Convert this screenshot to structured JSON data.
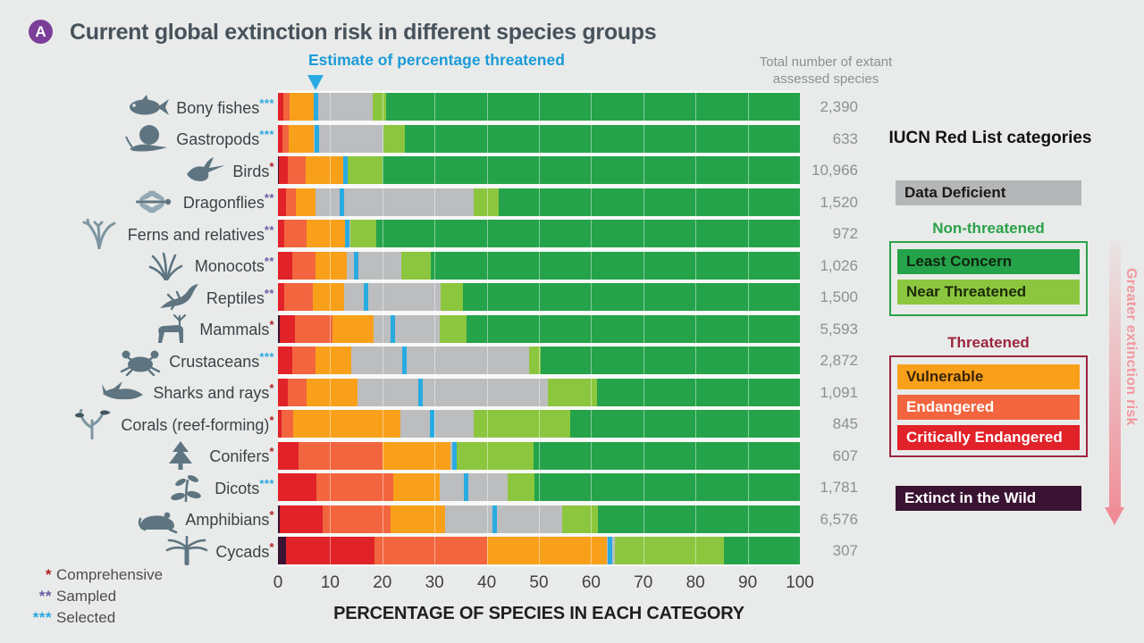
{
  "badge": "A",
  "title": "Current global extinction risk in different species groups",
  "annotation": {
    "text": "Estimate of percentage threatened",
    "color": "#1b9bd8"
  },
  "right_header": {
    "line1": "Total number of extant",
    "line2": "assessed species"
  },
  "legend": {
    "title": "IUCN Red List categories",
    "data_deficient": {
      "label": "Data Deficient",
      "color": "#b5b6b8"
    },
    "non_threatened": {
      "heading": "Non-threatened",
      "heading_color": "#2aa148",
      "items": [
        {
          "label": "Least Concern",
          "color": "#25a34a"
        },
        {
          "label": "Near Threatened",
          "color": "#8cc63f"
        }
      ]
    },
    "threatened": {
      "heading": "Threatened",
      "heading_color": "#9c2440",
      "items": [
        {
          "label": "Vulnerable",
          "color": "#f9a01b"
        },
        {
          "label": "Endangered",
          "color": "#f2653e"
        },
        {
          "label": "Critically Endangered",
          "color": "#e12228"
        }
      ]
    },
    "extinct_in_wild": {
      "label": "Extinct in the Wild",
      "color": "#3a1333"
    },
    "risk_arrow_label": "Greater extinction risk"
  },
  "axis": {
    "ticks": [
      0,
      10,
      20,
      30,
      40,
      50,
      60,
      70,
      80,
      90,
      100
    ],
    "label": "PERCENTAGE OF SPECIES IN EACH CATEGORY"
  },
  "footnotes": [
    {
      "stars": "*",
      "label": "Comprehensive",
      "color": "#b32025"
    },
    {
      "stars": "**",
      "label": "Sampled",
      "color": "#6a5fa7"
    },
    {
      "stars": "***",
      "label": "Selected",
      "color": "#2ba7e0"
    }
  ],
  "chart_data": {
    "type": "bar",
    "stacked": true,
    "orientation": "horizontal",
    "title": "Current global extinction risk in different species groups",
    "xlabel": "PERCENTAGE OF SPECIES IN EACH CATEGORY",
    "xlim": [
      0,
      100
    ],
    "grid": "white vertical lines every 10%",
    "legend_position": "right",
    "segment_order": [
      "extinct_in_wild",
      "critically_endangered",
      "endangered",
      "vulnerable",
      "data_deficient",
      "near_threatened",
      "least_concern"
    ],
    "segment_colors": {
      "extinct_in_wild": "#3a1333",
      "critically_endangered": "#e12228",
      "endangered": "#f2653e",
      "vulnerable": "#f9a01b",
      "data_deficient": "#bcbdbf",
      "near_threatened": "#8cc63f",
      "least_concern": "#25a34a"
    },
    "estimate_line_color": "#29abe2",
    "rows": [
      {
        "group": "Bony fishes",
        "stars": "***",
        "star_color": "#2ba7e0",
        "icon": "fish-icon",
        "total_assessed": "2,390",
        "segments": {
          "extinct_in_wild": 0,
          "critically_endangered": 1.0,
          "endangered": 1.2,
          "vulnerable": 4.8,
          "data_deficient": 11.2,
          "near_threatened": 2.5,
          "least_concern": 79.3
        },
        "estimate_pct_threatened": 7.2
      },
      {
        "group": "Gastropods",
        "stars": "***",
        "star_color": "#2ba7e0",
        "icon": "snail-icon",
        "total_assessed": "633",
        "segments": {
          "extinct_in_wild": 0,
          "critically_endangered": 0.9,
          "endangered": 1.2,
          "vulnerable": 4.7,
          "data_deficient": 13.4,
          "near_threatened": 4.1,
          "least_concern": 75.7
        },
        "estimate_pct_threatened": 7.4
      },
      {
        "group": "Birds",
        "stars": "*",
        "star_color": "#b32025",
        "icon": "bird-icon",
        "total_assessed": "10,966",
        "segments": {
          "extinct_in_wild": 0.2,
          "critically_endangered": 1.7,
          "endangered": 3.4,
          "vulnerable": 7.4,
          "data_deficient": 0.4,
          "near_threatened": 6.9,
          "least_concern": 80.0
        },
        "estimate_pct_threatened": 12.9
      },
      {
        "group": "Dragonflies",
        "stars": "**",
        "star_color": "#6a5fa7",
        "icon": "dragonfly-icon",
        "total_assessed": "1,520",
        "segments": {
          "extinct_in_wild": 0,
          "critically_endangered": 1.6,
          "endangered": 1.8,
          "vulnerable": 3.8,
          "data_deficient": 30.3,
          "near_threatened": 4.8,
          "least_concern": 57.7
        },
        "estimate_pct_threatened": 12.2
      },
      {
        "group": "Ferns and relatives",
        "stars": "**",
        "star_color": "#6a5fa7",
        "icon": "fern-icon",
        "total_assessed": "972",
        "segments": {
          "extinct_in_wild": 0,
          "critically_endangered": 1.2,
          "endangered": 4.3,
          "vulnerable": 7.5,
          "data_deficient": 0.9,
          "near_threatened": 4.9,
          "least_concern": 81.2
        },
        "estimate_pct_threatened": 13.3
      },
      {
        "group": "Monocots",
        "stars": "**",
        "star_color": "#6a5fa7",
        "icon": "grass-icon",
        "total_assessed": "1,026",
        "segments": {
          "extinct_in_wild": 0,
          "critically_endangered": 2.7,
          "endangered": 4.5,
          "vulnerable": 6.0,
          "data_deficient": 10.4,
          "near_threatened": 5.7,
          "least_concern": 70.7
        },
        "estimate_pct_threatened": 15.0
      },
      {
        "group": "Reptiles",
        "stars": "**",
        "star_color": "#6a5fa7",
        "icon": "lizard-icon",
        "total_assessed": "1,500",
        "segments": {
          "extinct_in_wild": 0,
          "critically_endangered": 1.2,
          "endangered": 5.5,
          "vulnerable": 6.0,
          "data_deficient": 18.5,
          "near_threatened": 4.2,
          "least_concern": 64.6
        },
        "estimate_pct_threatened": 16.8
      },
      {
        "group": "Mammals",
        "stars": "*",
        "star_color": "#b32025",
        "icon": "deer-icon",
        "total_assessed": "5,593",
        "segments": {
          "extinct_in_wild": 0.3,
          "critically_endangered": 3.0,
          "endangered": 7.1,
          "vulnerable": 7.9,
          "data_deficient": 12.7,
          "near_threatened": 5.1,
          "least_concern": 63.9
        },
        "estimate_pct_threatened": 22.0
      },
      {
        "group": "Crustaceans",
        "stars": "***",
        "star_color": "#2ba7e0",
        "icon": "crab-icon",
        "total_assessed": "2,872",
        "segments": {
          "extinct_in_wild": 0,
          "critically_endangered": 2.7,
          "endangered": 4.5,
          "vulnerable": 6.8,
          "data_deficient": 34.1,
          "near_threatened": 2.2,
          "least_concern": 49.7
        },
        "estimate_pct_threatened": 24.3
      },
      {
        "group": "Sharks and rays",
        "stars": "*",
        "star_color": "#b32025",
        "icon": "shark-icon",
        "total_assessed": "1,091",
        "segments": {
          "extinct_in_wild": 0,
          "critically_endangered": 1.9,
          "endangered": 3.6,
          "vulnerable": 9.7,
          "data_deficient": 36.5,
          "near_threatened": 9.4,
          "least_concern": 38.9
        },
        "estimate_pct_threatened": 27.3
      },
      {
        "group": "Corals (reef-forming)",
        "stars": "*",
        "star_color": "#b32025",
        "icon": "coral-icon",
        "total_assessed": "845",
        "segments": {
          "extinct_in_wild": 0,
          "critically_endangered": 0.6,
          "endangered": 2.3,
          "vulnerable": 20.6,
          "data_deficient": 14.0,
          "near_threatened": 18.5,
          "least_concern": 44.0
        },
        "estimate_pct_threatened": 29.5
      },
      {
        "group": "Conifers",
        "stars": "*",
        "star_color": "#b32025",
        "icon": "conifer-icon",
        "total_assessed": "607",
        "segments": {
          "extinct_in_wild": 0,
          "critically_endangered": 4.0,
          "endangered": 16.0,
          "vulnerable": 13.0,
          "data_deficient": 1.0,
          "near_threatened": 15.0,
          "least_concern": 51.0
        },
        "estimate_pct_threatened": 33.8
      },
      {
        "group": "Dicots",
        "stars": "***",
        "star_color": "#2ba7e0",
        "icon": "plant-icon",
        "total_assessed": "1,781",
        "segments": {
          "extinct_in_wild": 0,
          "critically_endangered": 7.4,
          "endangered": 14.7,
          "vulnerable": 8.9,
          "data_deficient": 13.0,
          "near_threatened": 5.1,
          "least_concern": 50.9
        },
        "estimate_pct_threatened": 36.0
      },
      {
        "group": "Amphibians",
        "stars": "*",
        "star_color": "#b32025",
        "icon": "frog-icon",
        "total_assessed": "6,576",
        "segments": {
          "extinct_in_wild": 0.3,
          "critically_endangered": 8.3,
          "endangered": 13.0,
          "vulnerable": 10.4,
          "data_deficient": 22.5,
          "near_threatened": 6.8,
          "least_concern": 38.7
        },
        "estimate_pct_threatened": 41.5
      },
      {
        "group": "Cycads",
        "stars": "*",
        "star_color": "#b32025",
        "icon": "palm-icon",
        "total_assessed": "307",
        "segments": {
          "extinct_in_wild": 1.5,
          "critically_endangered": 17.0,
          "endangered": 21.5,
          "vulnerable": 23.0,
          "data_deficient": 1.5,
          "near_threatened": 21.0,
          "least_concern": 14.5
        },
        "estimate_pct_threatened": 63.6
      }
    ]
  }
}
